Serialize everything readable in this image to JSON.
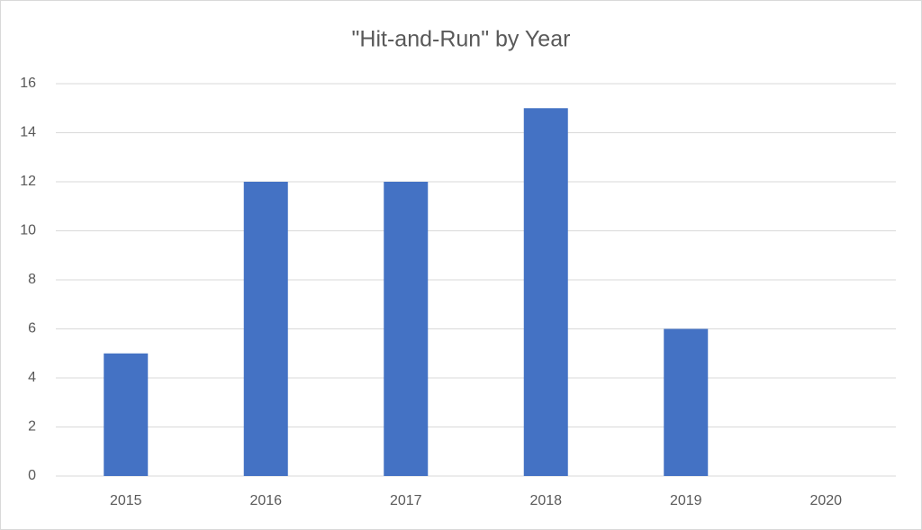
{
  "chart_data": {
    "type": "bar",
    "title": "\"Hit-and-Run\" by Year",
    "categories": [
      "2015",
      "2016",
      "2017",
      "2018",
      "2019",
      "2020"
    ],
    "values": [
      5,
      12,
      12,
      15,
      6,
      0
    ],
    "color": "#4472c4",
    "ylim": [
      0,
      16
    ],
    "yticks": [
      0,
      2,
      4,
      6,
      8,
      10,
      12,
      14,
      16
    ],
    "grid": true
  }
}
